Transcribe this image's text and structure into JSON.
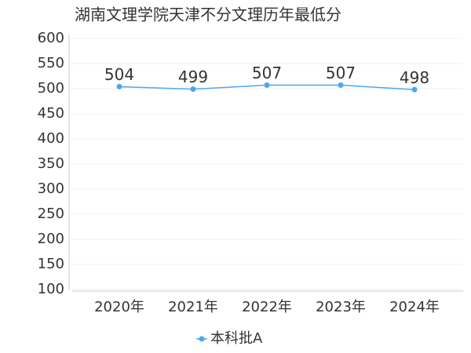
{
  "chart_data": {
    "type": "line",
    "title": "湖南文理学院天津不分文理历年最低分",
    "categories": [
      "2020年",
      "2021年",
      "2022年",
      "2023年",
      "2024年"
    ],
    "series": [
      {
        "name": "本科批A",
        "color": "#4da6f0",
        "values": [
          504,
          499,
          507,
          507,
          498
        ]
      }
    ],
    "ylim": [
      100,
      600
    ],
    "yticks": [
      100,
      150,
      200,
      250,
      300,
      350,
      400,
      450,
      500,
      550,
      600
    ],
    "grid": true,
    "legend": "bottom"
  }
}
